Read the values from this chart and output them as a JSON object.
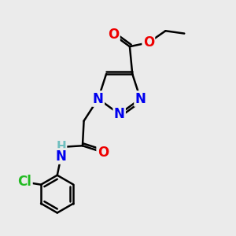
{
  "background_color": "#ebebeb",
  "atom_colors": {
    "C": "#000000",
    "N": "#0000ee",
    "O": "#ee0000",
    "Cl": "#22bb22",
    "H": "#6fbfbf"
  },
  "bond_color": "#000000",
  "bond_width": 1.8,
  "font_size": 12,
  "fig_size": [
    3.0,
    3.0
  ],
  "dpi": 100,
  "xlim": [
    1.0,
    9.5
  ],
  "ylim": [
    0.5,
    9.5
  ]
}
